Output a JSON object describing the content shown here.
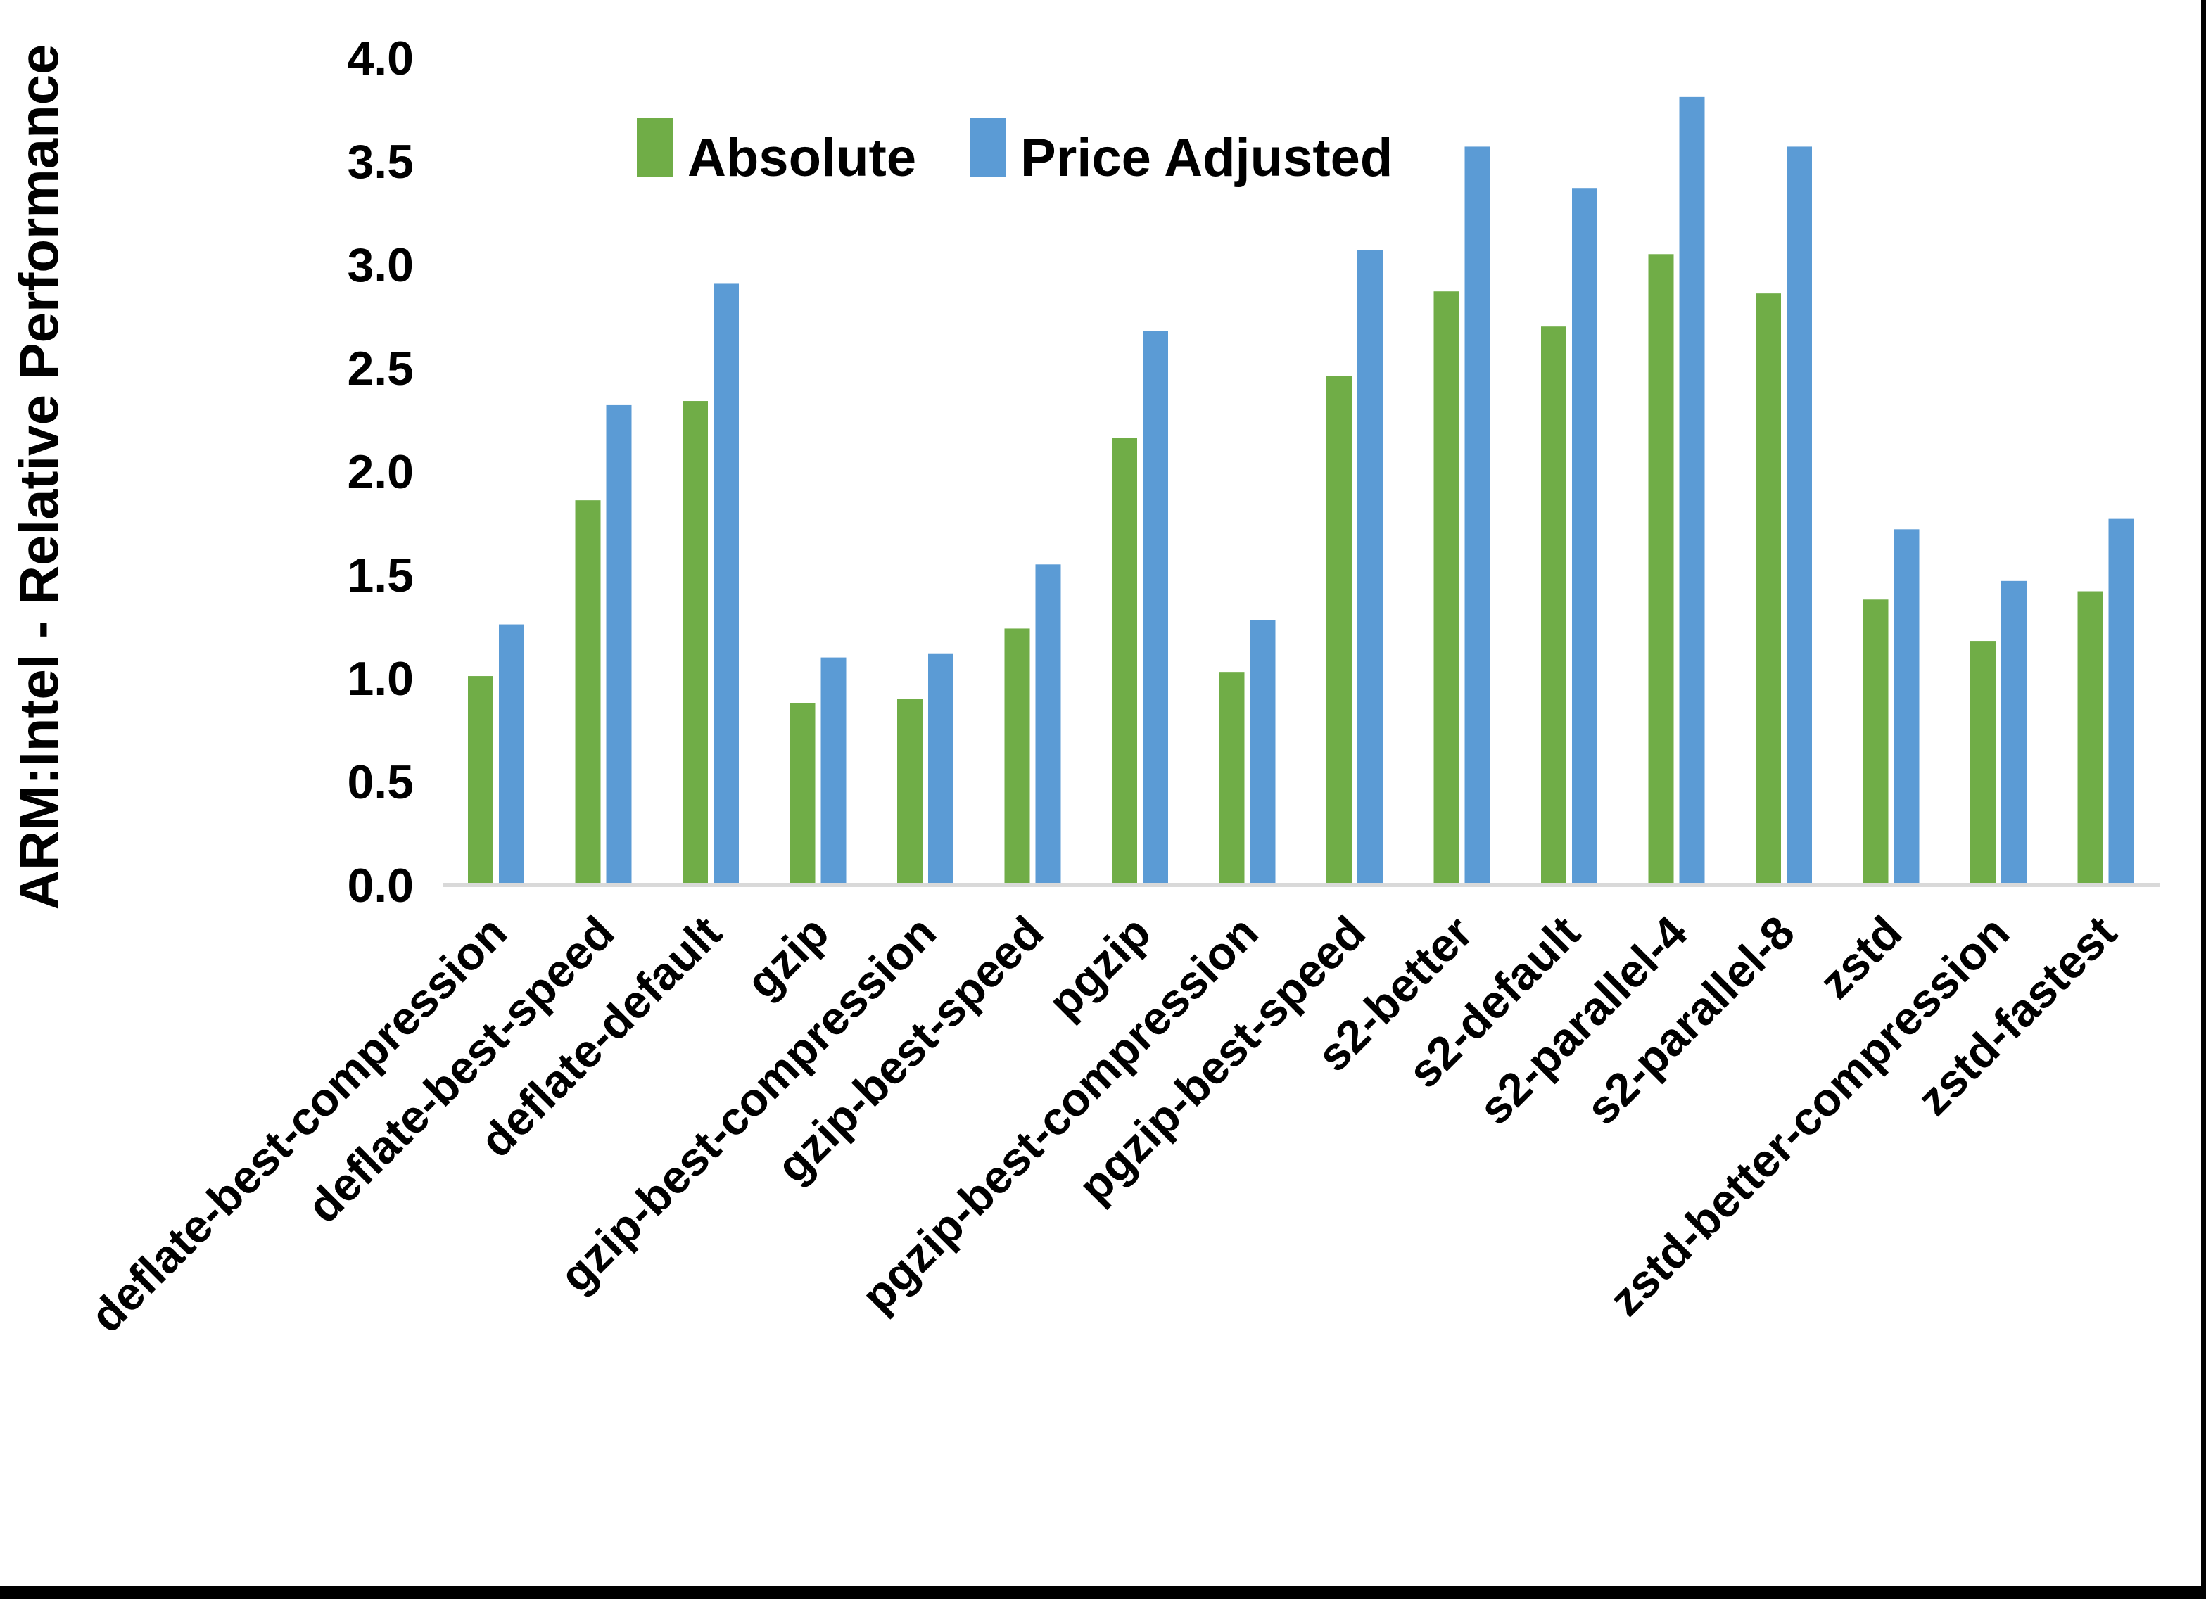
{
  "chart_data": {
    "type": "bar",
    "title": "",
    "xlabel": "",
    "ylabel": "ARM:Intel - Relative Performance",
    "ylim": [
      0.0,
      4.0
    ],
    "ytick_step": 0.5,
    "y_tick_labels": [
      "0.0",
      "0.5",
      "1.0",
      "1.5",
      "2.0",
      "2.5",
      "3.0",
      "3.5",
      "4.0"
    ],
    "grid": false,
    "legend_position": "top-center",
    "categories": [
      "deflate-best-compression",
      "deflate-best-speed",
      "deflate-default",
      "gzip",
      "gzip-best-compression",
      "gzip-best-speed",
      "pgzip",
      "pgzip-best-compression",
      "pgzip-best-speed",
      "s2-better",
      "s2-default",
      "s2-parallel-4",
      "s2-parallel-8",
      "zstd",
      "zstd-better-compression",
      "zstd-fastest"
    ],
    "series": [
      {
        "name": "Absolute",
        "color": "#70AD47",
        "values": [
          1.01,
          1.86,
          2.34,
          0.88,
          0.9,
          1.24,
          2.16,
          1.03,
          2.46,
          2.87,
          2.7,
          3.05,
          2.86,
          1.38,
          1.18,
          1.42
        ]
      },
      {
        "name": "Price Adjusted",
        "color": "#5B9BD5",
        "values": [
          1.26,
          2.32,
          2.91,
          1.1,
          1.12,
          1.55,
          2.68,
          1.28,
          3.07,
          3.57,
          3.37,
          3.81,
          3.57,
          1.72,
          1.47,
          1.77
        ]
      }
    ]
  },
  "colors": {
    "axis_line": "#D9D9D9",
    "text": "#000000",
    "background": "#FFFFFF",
    "frame_edge": "#000000"
  }
}
